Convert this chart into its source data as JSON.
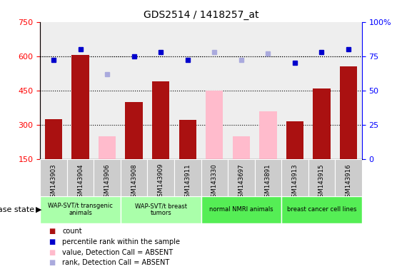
{
  "title": "GDS2514 / 1418257_at",
  "samples": [
    "GSM143903",
    "GSM143904",
    "GSM143906",
    "GSM143908",
    "GSM143909",
    "GSM143911",
    "GSM143330",
    "GSM143697",
    "GSM143891",
    "GSM143913",
    "GSM143915",
    "GSM143916"
  ],
  "count_values": [
    325,
    605,
    null,
    400,
    490,
    320,
    null,
    null,
    null,
    315,
    460,
    555
  ],
  "count_absent": [
    null,
    null,
    250,
    null,
    null,
    null,
    450,
    250,
    360,
    null,
    null,
    null
  ],
  "rank_values": [
    72,
    80,
    null,
    75,
    78,
    72,
    null,
    null,
    null,
    70,
    78,
    80
  ],
  "rank_absent": [
    null,
    null,
    62,
    null,
    null,
    null,
    78,
    72,
    77,
    null,
    null,
    null
  ],
  "groups": [
    {
      "label": "WAP-SVT/t transgenic\nanimals",
      "indices": [
        0,
        1,
        2
      ],
      "color": "#aaffaa"
    },
    {
      "label": "WAP-SVT/t breast\ntumors",
      "indices": [
        3,
        4,
        5
      ],
      "color": "#aaffaa"
    },
    {
      "label": "normal NMRI animals",
      "indices": [
        6,
        7,
        8
      ],
      "color": "#55ee55"
    },
    {
      "label": "breast cancer cell lines",
      "indices": [
        9,
        10,
        11
      ],
      "color": "#55ee55"
    }
  ],
  "ylim_left": [
    150,
    750
  ],
  "ylim_right": [
    0,
    100
  ],
  "yticks_left": [
    150,
    300,
    450,
    600,
    750
  ],
  "yticks_right": [
    0,
    25,
    50,
    75,
    100
  ],
  "gridlines": [
    300,
    450,
    600
  ],
  "bar_color_present": "#aa1111",
  "bar_color_absent": "#ffbbcc",
  "dot_color_present": "#0000cc",
  "dot_color_absent": "#aaaadd",
  "tick_bg_color": "#cccccc",
  "plot_bg_color": "#eeeeee"
}
